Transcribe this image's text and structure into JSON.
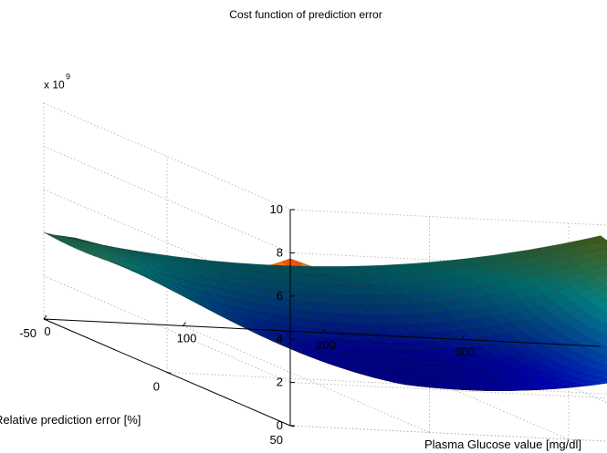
{
  "chart_data": {
    "type": "surface",
    "title": "Cost function of prediction error",
    "xlabel": "Plasma Glucose value [mg/dl]",
    "ylabel": "Relative prediction error [%]",
    "zlabel": "",
    "z_multiplier": "x 10",
    "z_multiplier_exponent": "9",
    "xlim": [
      0,
      400
    ],
    "ylim": [
      -50,
      50
    ],
    "zlim": [
      0,
      10
    ],
    "x_ticks": [
      "0",
      "100",
      "200",
      "300"
    ],
    "x_tick_values": [
      0,
      100,
      200,
      300
    ],
    "y_ticks": [
      "-50",
      "0",
      "50"
    ],
    "y_tick_values": [
      -50,
      0,
      50
    ],
    "z_ticks": [
      "0",
      "2",
      "4",
      "6",
      "8",
      "10"
    ],
    "z_tick_values": [
      0,
      2,
      4,
      6,
      8,
      10
    ],
    "grid": true,
    "colormap": "jet",
    "corner_values": [
      {
        "x": 0,
        "y": 50,
        "z": 9.0
      },
      {
        "x": 400,
        "y": 50,
        "z": 5.5
      },
      {
        "x": 400,
        "y": -50,
        "z": 4.5
      },
      {
        "x": 0,
        "y": -50,
        "z": 2.8
      }
    ],
    "edge_minima": [
      {
        "x": 0,
        "y": 22,
        "z": 2.1
      },
      {
        "x": 400,
        "y": 0,
        "z": 0.2
      }
    ]
  }
}
